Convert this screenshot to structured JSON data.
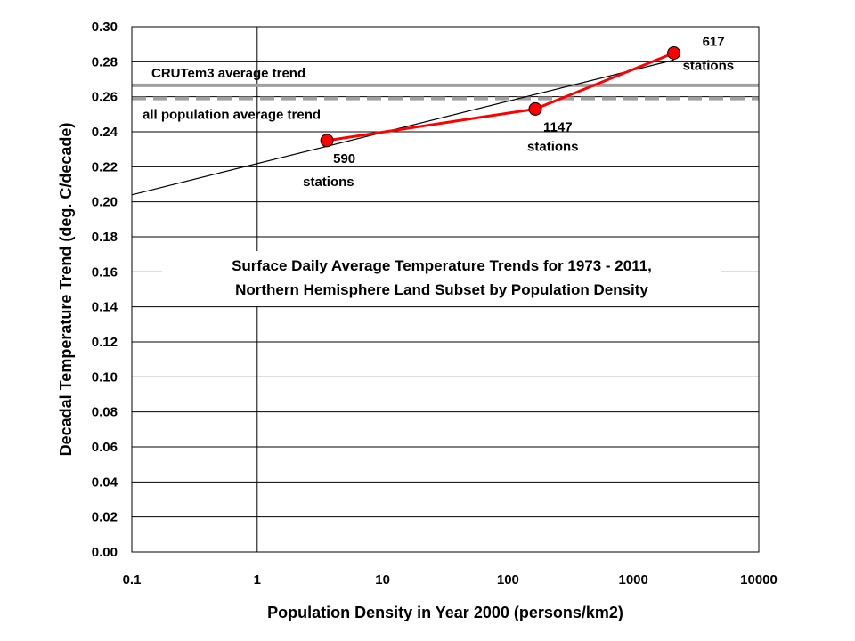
{
  "chart_data": {
    "type": "line",
    "title_lines": [
      "Surface Daily Average Temperature Trends for 1973 - 2011,",
      "Northern Hemisphere Land Subset by Population Density"
    ],
    "xlabel": "Population Density in Year 2000 (persons/km2)",
    "ylabel": "Decadal Temperature Trend (deg. C/decade)",
    "x_scale": "log",
    "xlim": [
      0.1,
      10000
    ],
    "ylim": [
      0,
      0.3
    ],
    "x_ticks": [
      0.1,
      1,
      10,
      100,
      1000,
      10000
    ],
    "x_tick_labels": [
      "0.1",
      "1",
      "10",
      "100",
      "1000",
      "10000"
    ],
    "y_ticks": [
      0,
      0.02,
      0.04,
      0.06,
      0.08,
      0.1,
      0.12,
      0.14,
      0.16,
      0.18,
      0.2,
      0.22,
      0.24,
      0.26,
      0.28,
      0.3
    ],
    "y_tick_labels": [
      "0.00",
      "0.02",
      "0.04",
      "0.06",
      "0.08",
      "0.10",
      "0.12",
      "0.14",
      "0.16",
      "0.18",
      "0.20",
      "0.22",
      "0.24",
      "0.26",
      "0.28",
      "0.30"
    ],
    "grid": "horizontal",
    "series": [
      {
        "color": "#ff0000",
        "marker": "circle",
        "x": [
          3.6,
          165,
          2100
        ],
        "y": [
          0.235,
          0.253,
          0.285
        ],
        "point_labels": [
          [
            "590",
            "stations"
          ],
          [
            "1147",
            "stations"
          ],
          [
            "617",
            "stations"
          ]
        ]
      }
    ],
    "fit_line": {
      "color": "#000000",
      "x": [
        0.1,
        2100
      ],
      "y": [
        0.204,
        0.281
      ]
    },
    "reference_lines": [
      {
        "label": "CRUTem3 average trend",
        "y": 0.2665,
        "color": "#a0a0a0",
        "style": "solid"
      },
      {
        "label": "all population average trend",
        "y": 0.259,
        "color": "#a0a0a0",
        "style": "dashed"
      }
    ]
  }
}
